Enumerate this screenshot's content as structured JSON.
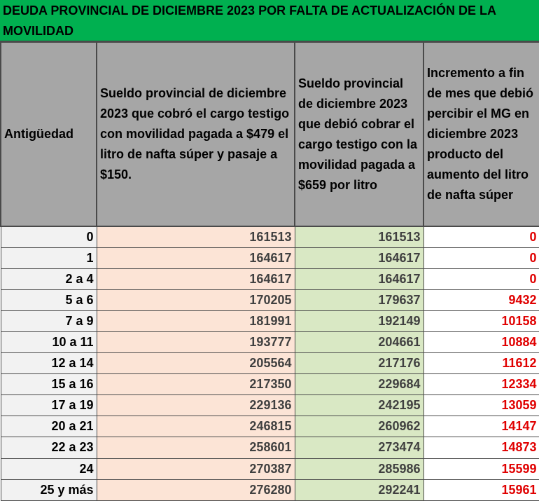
{
  "title": "DEUDA PROVINCIAL DE DICIEMBRE 2023 POR FALTA DE ACTUALIZACIÓN DE LA MOVILIDAD",
  "headers": {
    "antiguedad": "Antigüedad",
    "cobro": "Sueldo provincial de diciembre 2023 que cobró el cargo testigo con movilidad pagada a $479 el litro de nafta súper y pasaje a $150.",
    "debio": "Sueldo provincial de diciembre 2023 que debió cobrar el cargo testigo con la movilidad pagada a $659 por litro",
    "incremento": "Incremento a fin de mes que debió percibir el MG en diciembre 2023 producto del aumento del litro de nafta súper"
  },
  "rows": [
    {
      "antiguedad": "0",
      "cobro": "161513",
      "debio": "161513",
      "incremento": "0"
    },
    {
      "antiguedad": "1",
      "cobro": "164617",
      "debio": "164617",
      "incremento": "0"
    },
    {
      "antiguedad": "2 a 4",
      "cobro": "164617",
      "debio": "164617",
      "incremento": "0"
    },
    {
      "antiguedad": "5 a 6",
      "cobro": "170205",
      "debio": "179637",
      "incremento": "9432"
    },
    {
      "antiguedad": "7 a 9",
      "cobro": "181991",
      "debio": "192149",
      "incremento": "10158"
    },
    {
      "antiguedad": "10 a 11",
      "cobro": "193777",
      "debio": "204661",
      "incremento": "10884"
    },
    {
      "antiguedad": "12 a 14",
      "cobro": "205564",
      "debio": "217176",
      "incremento": "11612"
    },
    {
      "antiguedad": "15 a 16",
      "cobro": "217350",
      "debio": "229684",
      "incremento": "12334"
    },
    {
      "antiguedad": "17 a 19",
      "cobro": "229136",
      "debio": "242195",
      "incremento": "13059"
    },
    {
      "antiguedad": "20 a 21",
      "cobro": "246815",
      "debio": "260962",
      "incremento": "14147"
    },
    {
      "antiguedad": "22 a 23",
      "cobro": "258601",
      "debio": "273474",
      "incremento": "14873"
    },
    {
      "antiguedad": "24",
      "cobro": "270387",
      "debio": "285986",
      "incremento": "15599"
    },
    {
      "antiguedad": "25 y más",
      "cobro": "276280",
      "debio": "292241",
      "incremento": "15961"
    }
  ],
  "colors": {
    "title_bg": "#00b050",
    "header_bg": "#a6a6a6",
    "cobro_bg": "#fce4d6",
    "debio_bg": "#d9e8c4",
    "increment_text": "#e00000"
  }
}
